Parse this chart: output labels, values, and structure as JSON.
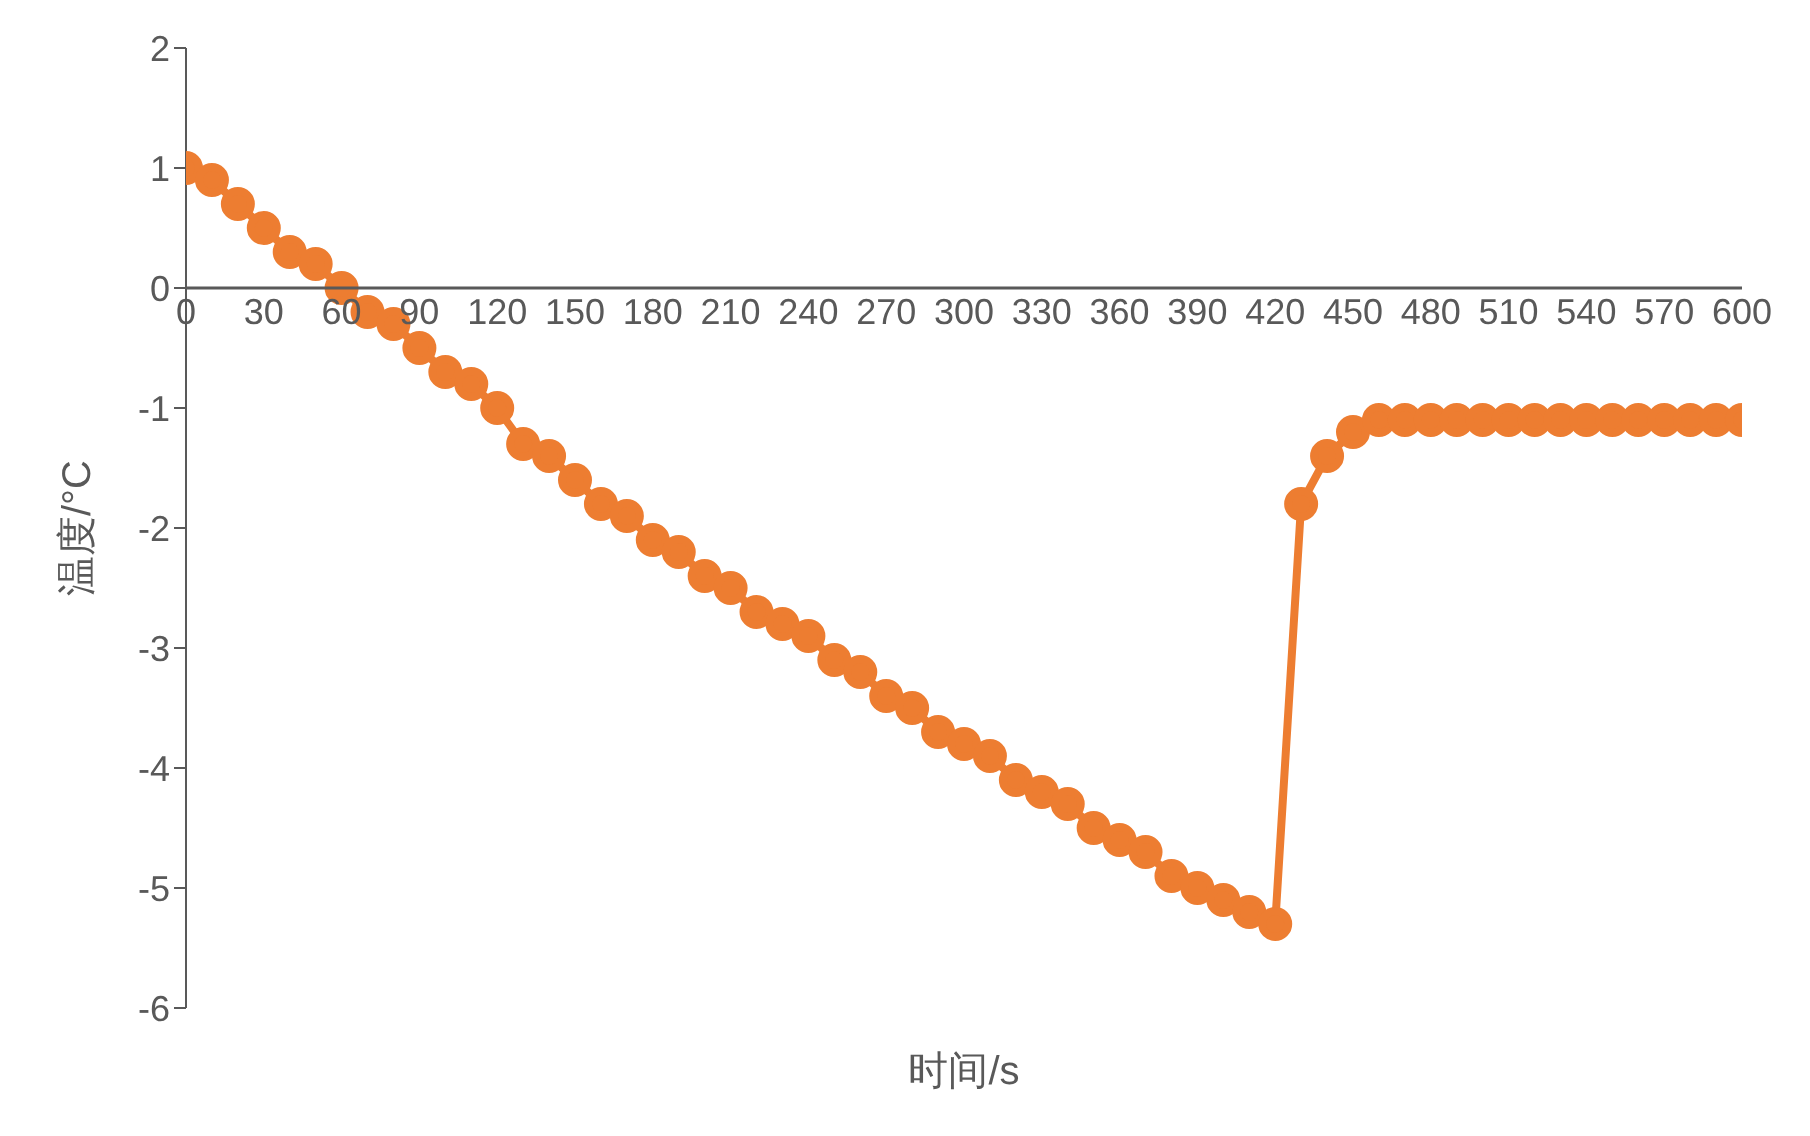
{
  "chart_data": {
    "type": "line",
    "xlabel": "时间/s",
    "ylabel": "温度/°C",
    "x": [
      0,
      10,
      20,
      30,
      40,
      50,
      60,
      70,
      80,
      90,
      100,
      110,
      120,
      130,
      140,
      150,
      160,
      170,
      180,
      190,
      200,
      210,
      220,
      230,
      240,
      250,
      260,
      270,
      280,
      290,
      300,
      310,
      320,
      330,
      340,
      350,
      360,
      370,
      380,
      390,
      400,
      410,
      420,
      430,
      440,
      450,
      460,
      470,
      480,
      490,
      500,
      510,
      520,
      530,
      540,
      550,
      560,
      570,
      580,
      590,
      600
    ],
    "series": [
      {
        "color": "#ed7d31",
        "values": [
          1,
          0.9,
          0.7,
          0.5,
          0.3,
          0.2,
          0,
          -0.2,
          -0.3,
          -0.5,
          -0.7,
          -0.8,
          -1.0,
          -1.3,
          -1.4,
          -1.6,
          -1.8,
          -1.9,
          -2.1,
          -2.2,
          -2.4,
          -2.5,
          -2.7,
          -2.8,
          -2.9,
          -3.1,
          -3.2,
          -3.4,
          -3.5,
          -3.7,
          -3.8,
          -3.9,
          -4.1,
          -4.2,
          -4.3,
          -4.5,
          -4.6,
          -4.7,
          -4.9,
          -5.0,
          -5.1,
          -5.2,
          -5.3,
          -1.8,
          -1.4,
          -1.2,
          -1.1,
          -1.1,
          -1.1,
          -1.1,
          -1.1,
          -1.1,
          -1.1,
          -1.1,
          -1.1,
          -1.1,
          -1.1,
          -1.1,
          -1.1,
          -1.1,
          -1.1
        ]
      }
    ],
    "xlim": [
      0,
      600
    ],
    "xticks": [
      0,
      30,
      60,
      90,
      120,
      150,
      180,
      210,
      240,
      270,
      300,
      330,
      360,
      390,
      420,
      450,
      480,
      510,
      540,
      570,
      600
    ],
    "ylim": [
      -6,
      2
    ],
    "yticks": [
      -6,
      -5,
      -4,
      -3,
      -2,
      -1,
      0,
      1,
      2
    ],
    "grid": false,
    "legend": false,
    "marker": "circle",
    "line_style": "solid"
  }
}
